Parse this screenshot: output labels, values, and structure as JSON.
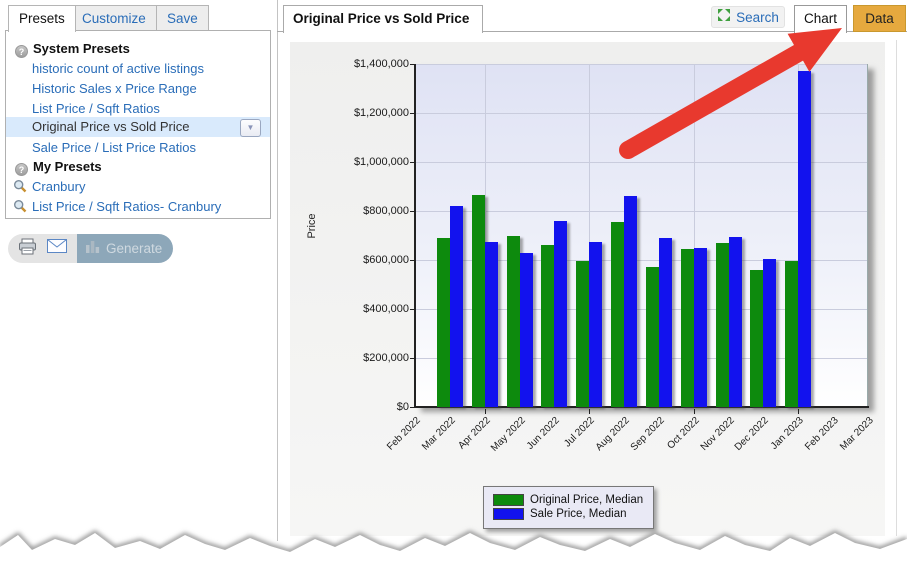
{
  "sidebar": {
    "tabs": [
      {
        "label": "Presets",
        "active": true
      },
      {
        "label": "Customize",
        "active": false
      },
      {
        "label": "Save",
        "active": false
      }
    ],
    "system_presets": {
      "title": "System Presets",
      "items": [
        "historic count of active listings",
        "Historic Sales x Price Range",
        "List Price / Sqft Ratios",
        "Original Price vs Sold Price",
        "Sale Price / List Price Ratios"
      ],
      "selected": "Original Price vs Sold Price"
    },
    "my_presets": {
      "title": "My Presets",
      "items": [
        "Cranbury",
        "List Price / Sqft Ratios- Cranbury"
      ]
    },
    "generate_label": "Generate"
  },
  "panel": {
    "title": "Original Price vs Sold Price",
    "search_label": "Search",
    "chart_tab": "Chart",
    "data_tab": "Data",
    "data_tab_highlight_color": "#e6a93e"
  },
  "chart_data": {
    "type": "bar",
    "title": "Original Price vs Sold Price",
    "xlabel": "",
    "ylabel": "Price",
    "ylim": [
      0,
      1400000
    ],
    "ytick_step": 200000,
    "grid": true,
    "legend_position": "bottom",
    "categories": [
      "Feb 2022",
      "Mar 2022",
      "Apr 2022",
      "May 2022",
      "Jun 2022",
      "Jul 2022",
      "Aug 2022",
      "Sep 2022",
      "Oct 2022",
      "Nov 2022",
      "Dec 2022",
      "Jan 2023",
      "Feb 2023",
      "Mar 2023"
    ],
    "series": [
      {
        "name": "Original Price, Median",
        "color": "#0d8a0d",
        "values": [
          null,
          690000,
          865000,
          700000,
          660000,
          595000,
          755000,
          570000,
          645000,
          670000,
          560000,
          595000,
          null,
          null
        ]
      },
      {
        "name": "Sale Price, Median",
        "color": "#1212ee",
        "values": [
          null,
          820000,
          675000,
          630000,
          760000,
          675000,
          860000,
          690000,
          650000,
          695000,
          605000,
          1370000,
          null,
          null
        ]
      }
    ]
  },
  "annotation": {
    "arrow_color": "#e8392e",
    "arrow_points_to": "Data"
  },
  "colors": {
    "link_blue": "#2a6db8",
    "selected_row": "#d9eafc",
    "accent_gold": "#e6a93e"
  }
}
